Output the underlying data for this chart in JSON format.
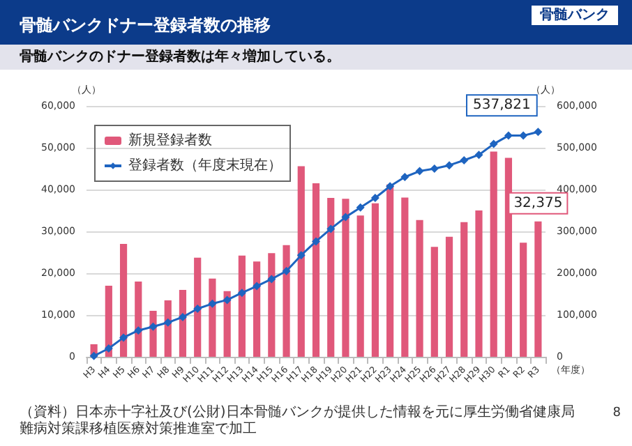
{
  "chart_data": {
    "type": "bar",
    "title": "骨髄バンクドナー登録者数の推移",
    "subtitle": "骨髄バンクのドナー登録者数は年々増加している。",
    "annotations": [
      "骨髄バンク",
      "（資料）日本赤十字社及び(公財)日本骨髄バンクが提供した情報を元に厚生労働省健康局難病対策課移植医療対策推進室で加工",
      "8"
    ],
    "xlabel": "（年度）",
    "ylabel": "（人）",
    "y2label": "（人）",
    "categories": [
      "H3",
      "H4",
      "H5",
      "H6",
      "H7",
      "H8",
      "H9",
      "H10",
      "H11",
      "H12",
      "H13",
      "H14",
      "H15",
      "H16",
      "H17",
      "H18",
      "H19",
      "H20",
      "H21",
      "H22",
      "H23",
      "H24",
      "H25",
      "H26",
      "H27",
      "H28",
      "H29",
      "H30",
      "R1",
      "R2",
      "R3"
    ],
    "series": [
      {
        "name": "新規登録者数",
        "color": "#e0587a",
        "values": [
          3000,
          17000,
          27000,
          18000,
          11000,
          13500,
          16000,
          23700,
          18700,
          15700,
          24200,
          22800,
          24800,
          26700,
          45600,
          41500,
          38000,
          37800,
          33800,
          36700,
          41200,
          38100,
          32700,
          26300,
          28700,
          32200,
          35000,
          49100,
          47600,
          27300,
          32375
        ],
        "value_labels": [
          null,
          null,
          null,
          null,
          null,
          null,
          null,
          null,
          null,
          null,
          null,
          null,
          null,
          null,
          null,
          null,
          null,
          null,
          null,
          null,
          null,
          null,
          null,
          null,
          null,
          null,
          null,
          null,
          null,
          null,
          "32,375"
        ]
      },
      {
        "name": "登録者数（年度末現在）",
        "type": "line",
        "axis": "y2",
        "color": "#1e64c0",
        "marker": "diamond",
        "values": [
          2000,
          20000,
          46000,
          63000,
          72000,
          82000,
          95000,
          115000,
          127000,
          136000,
          153000,
          169000,
          186000,
          205000,
          243000,
          276000,
          306000,
          334000,
          357000,
          380000,
          408000,
          430000,
          444000,
          450000,
          458000,
          470000,
          483000,
          509000,
          529000,
          529000,
          537821
        ],
        "value_labels": [
          null,
          null,
          null,
          null,
          null,
          null,
          null,
          null,
          null,
          null,
          null,
          null,
          null,
          null,
          null,
          null,
          null,
          null,
          null,
          null,
          null,
          null,
          null,
          null,
          null,
          null,
          null,
          null,
          null,
          null,
          "537,821"
        ]
      }
    ],
    "ylim": [
      0,
      60000
    ],
    "yticks": [
      0,
      {
        "value": 10000,
        "label": "10,000"
      },
      {
        "value": 20000,
        "label": "20,000"
      },
      {
        "value": 30000,
        "label": "30,000"
      },
      {
        "value": 40000,
        "label": "40,000"
      },
      {
        "value": 50000,
        "label": "50,000"
      },
      {
        "value": 60000,
        "label": "60,000"
      }
    ],
    "y2lim": [
      0,
      600000
    ],
    "y2ticks": [
      0,
      {
        "value": 100000,
        "label": "100,000"
      },
      {
        "value": 200000,
        "label": "200,000"
      },
      {
        "value": 300000,
        "label": "300,000"
      },
      {
        "value": 400000,
        "label": "400,000"
      },
      {
        "value": 500000,
        "label": "500,000"
      },
      {
        "value": 600000,
        "label": "600,000"
      }
    ],
    "grid": "y",
    "legend": "top left"
  }
}
